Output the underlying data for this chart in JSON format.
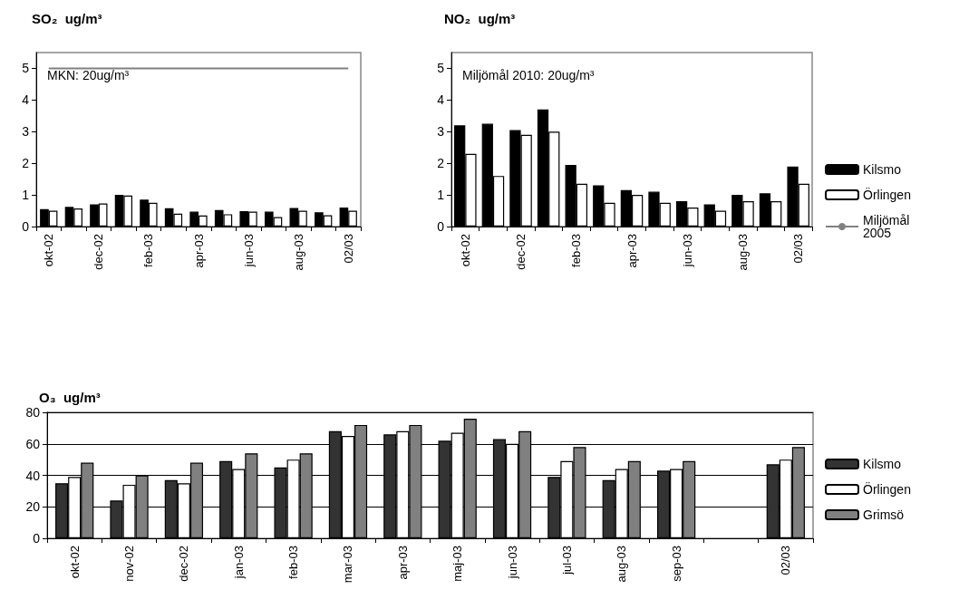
{
  "chart_data": [
    {
      "type": "bar",
      "title": "SO₂  ug/m³",
      "categories": [
        "okt-02",
        null,
        "dec-02",
        null,
        "feb-03",
        null,
        "apr-03",
        null,
        "jun-03",
        null,
        "aug-03",
        null,
        "02/03"
      ],
      "series": [
        {
          "name": "Kilsmo",
          "color": "#000000",
          "values": [
            0.55,
            0.62,
            0.7,
            1.0,
            0.85,
            0.58,
            0.47,
            0.52,
            0.49,
            0.47,
            0.59,
            0.45,
            0.6
          ]
        },
        {
          "name": "Örlingen",
          "color": "#ffffff",
          "values": [
            0.5,
            0.57,
            0.73,
            0.98,
            0.75,
            0.41,
            0.35,
            0.39,
            0.47,
            0.3,
            0.5,
            0.36,
            0.5
          ]
        },
        {
          "name": "Miljömål 2005",
          "type": "line",
          "color": "#808080",
          "values": [
            5,
            5,
            5,
            5,
            5,
            5,
            5,
            5,
            5,
            5,
            5,
            5,
            5
          ]
        }
      ],
      "ylim": [
        0,
        5.5
      ],
      "yticks": [
        0,
        1,
        2,
        3,
        4,
        5
      ],
      "grid": false,
      "legend": "right",
      "marker": "none",
      "annotations": [
        "MKN: 20ug/m³"
      ]
    },
    {
      "type": "bar",
      "title": "NO₂  ug/m³",
      "categories": [
        "okt-02",
        null,
        "dec-02",
        null,
        "feb-03",
        null,
        "apr-03",
        null,
        "jun-03",
        null,
        "aug-03",
        null,
        "02/03"
      ],
      "series": [
        {
          "color": "#000000",
          "values": [
            3.2,
            3.25,
            3.05,
            3.7,
            1.95,
            1.3,
            1.15,
            1.1,
            0.8,
            0.7,
            1.0,
            1.05,
            1.9
          ]
        },
        {
          "color": "#ffffff",
          "values": [
            2.3,
            1.6,
            2.9,
            3.0,
            1.35,
            0.75,
            1.0,
            0.75,
            0.6,
            0.5,
            0.8,
            0.8,
            1.35
          ]
        }
      ],
      "ylim": [
        0,
        5.5
      ],
      "yticks": [
        0,
        1,
        2,
        3,
        4,
        5
      ],
      "grid": false,
      "annotations": [
        "Miljömål 2010: 20ug/m³"
      ]
    },
    {
      "type": "bar",
      "title": "O₃  ug/m³",
      "categories": [
        "okt-02",
        "nov-02",
        "dec-02",
        "jan-03",
        "feb-03",
        "mar-03",
        "apr-03",
        "maj-03",
        "jun-03",
        "jul-03",
        "aug-03",
        "sep-03",
        null,
        "02/03"
      ],
      "series": [
        {
          "name": "Kilsmo",
          "color": "#333333",
          "values": [
            35,
            24,
            37,
            49,
            45,
            68,
            66,
            62,
            63,
            39,
            37,
            43,
            null,
            47
          ]
        },
        {
          "name": "Örlingen",
          "color": "#ffffff",
          "values": [
            39,
            34,
            35,
            44,
            50,
            65,
            68,
            67,
            60,
            49,
            44,
            44,
            null,
            50
          ]
        },
        {
          "name": "Grimsö",
          "color": "#808080",
          "values": [
            48,
            40,
            48,
            54,
            54,
            72,
            72,
            76,
            68,
            58,
            49,
            49,
            null,
            58
          ]
        }
      ],
      "ylim": [
        0,
        80
      ],
      "yticks": [
        0,
        20,
        40,
        60,
        80
      ],
      "grid": "y",
      "legend": "right"
    }
  ]
}
